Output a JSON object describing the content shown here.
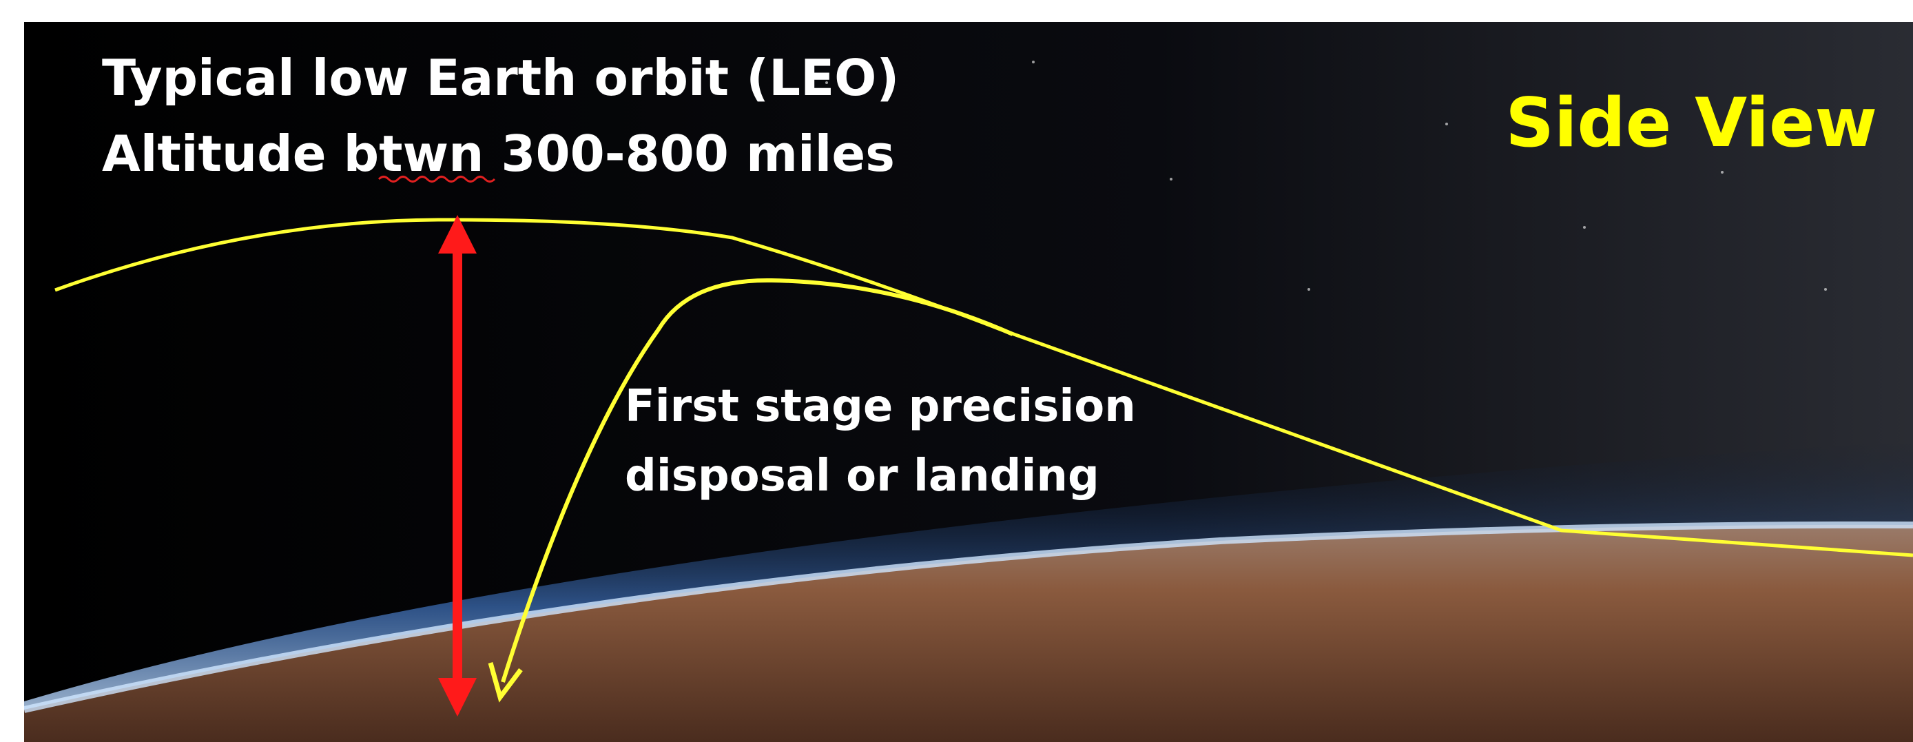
{
  "heading": {
    "lines": [
      "Typical low Earth orbit (LEO)",
      "Altitude btwn 300-800 miles"
    ]
  },
  "view_label": "Side View",
  "annotation": {
    "lines": [
      "First stage precision",
      "disposal or landing"
    ]
  }
}
